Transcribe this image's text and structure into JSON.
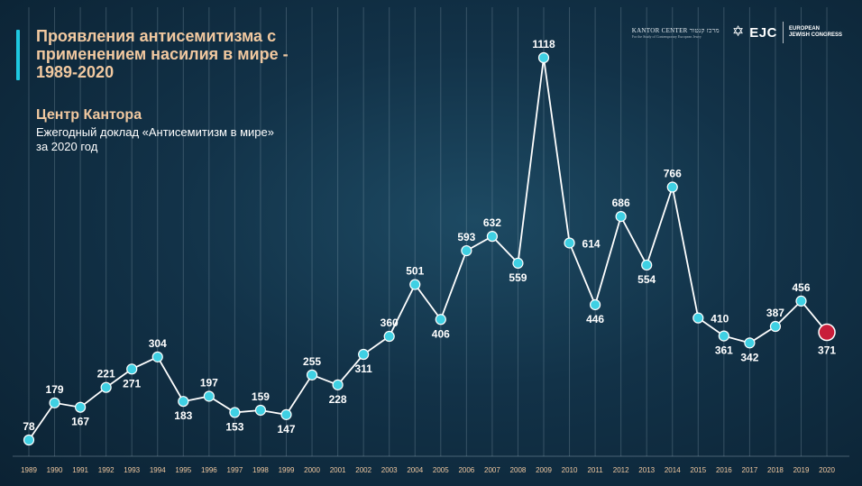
{
  "header": {
    "title": "Проявления антисемитизма с\nприменением насилия в мире -\n1989-2020",
    "source_title": "Центр Кантора",
    "source_subtitle": "Ежегодный доклад «Антисемитизм в мире»\nза 2020 год"
  },
  "logos": {
    "kantor_label": "KANTOR CENTER  מרכז קנטור",
    "kantor_sub": "For the Study of Contemporary European Jewry",
    "ejc_short": "EJC",
    "ejc_full": "EUROPEAN\nJEWISH CONGRESS"
  },
  "chart_data": {
    "type": "line",
    "x": [
      "1989",
      "1990",
      "1991",
      "1992",
      "1993",
      "1994",
      "1995",
      "1996",
      "1997",
      "1998",
      "1999",
      "2000",
      "2001",
      "2002",
      "2003",
      "2004",
      "2005",
      "2006",
      "2007",
      "2008",
      "2009",
      "2010",
      "2011",
      "2012",
      "2013",
      "2014",
      "2015",
      "2016",
      "2017",
      "2018",
      "2019",
      "2020"
    ],
    "values": [
      78,
      179,
      167,
      221,
      271,
      304,
      183,
      197,
      153,
      159,
      147,
      255,
      228,
      311,
      null,
      501,
      406,
      593,
      632,
      559,
      1118,
      614,
      446,
      686,
      554,
      766,
      410,
      361,
      342,
      387,
      456,
      371
    ],
    "labels": [
      "78",
      "179",
      "167",
      "221",
      "271",
      "304",
      "183",
      "197",
      "153",
      "159",
      "147",
      "255",
      "228",
      "311",
      "360",
      "501",
      "406",
      "593",
      "632",
      "559",
      "1118",
      "614",
      "446",
      "686",
      "554",
      "766",
      "410",
      "361",
      "342",
      "387",
      "456",
      "371"
    ],
    "label_position": [
      "above",
      "above",
      "below",
      "above",
      "below",
      "above",
      "below",
      "above",
      "below",
      "above",
      "below",
      "above",
      "below",
      "below",
      "above",
      "above",
      "below",
      "above",
      "above",
      "below",
      "above",
      "right",
      "below",
      "above",
      "below",
      "above",
      "right",
      "below",
      "below",
      "above",
      "above",
      "below"
    ],
    "ylim": [
      0,
      1150
    ],
    "grid": "vertical",
    "colors": {
      "line": "#ffffff",
      "point": "#3fd0e3",
      "last_point": "#c81d3a",
      "label": "#ffffff",
      "tick": "#f2c9a0",
      "grid": "#9fb3c2"
    }
  }
}
